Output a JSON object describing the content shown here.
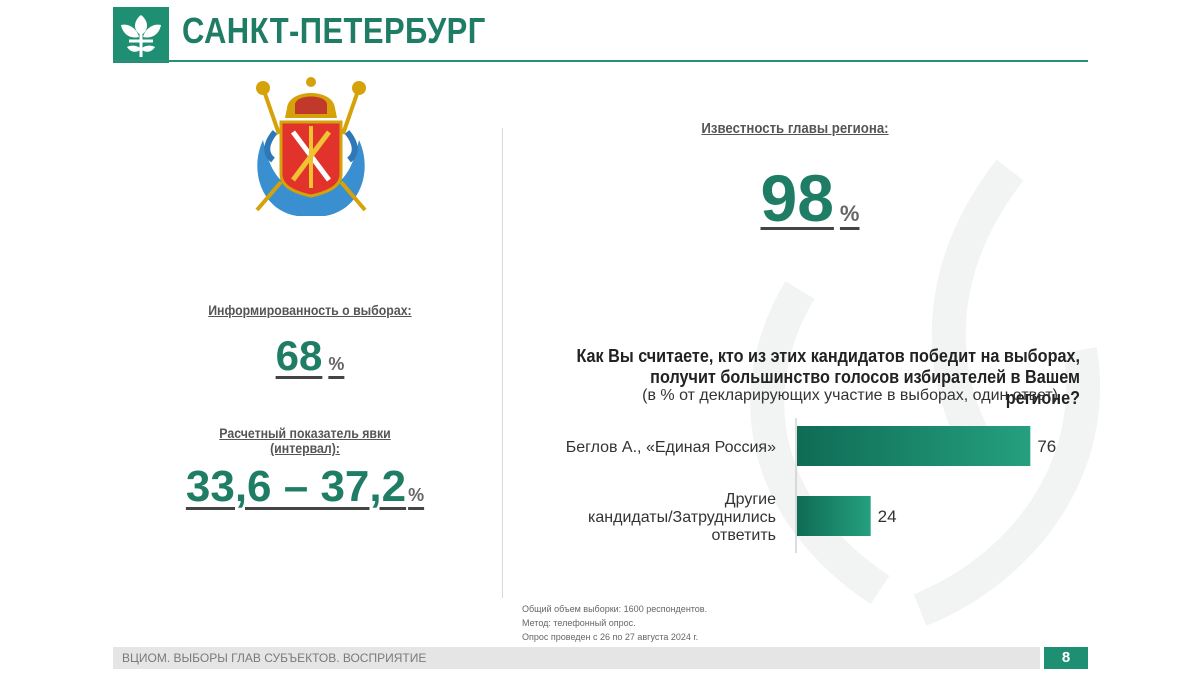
{
  "header": {
    "title": "САНКТ-ПЕТЕРБУРГ"
  },
  "awareness": {
    "label": "Известность главы региона:",
    "value": "98",
    "unit": "%"
  },
  "informed": {
    "label": "Информированность о выборах:",
    "value": "68",
    "unit": "%"
  },
  "turnout": {
    "label": "Расчетный показатель явки (интервал):",
    "value": "33,6 – 37,2",
    "unit": "%"
  },
  "question": {
    "text": "Как Вы считаете, кто из этих кандидатов победит на выборах, получит большинство голосов избирателей в Вашем регионе?",
    "note": "(в % от  декларирующих участие в выборах, один ответ)"
  },
  "chart_data": {
    "type": "bar",
    "orientation": "horizontal",
    "categories": [
      "Беглов А., «Единая Россия»",
      "Другие кандидаты/Затруднились ответить"
    ],
    "values": [
      76,
      24
    ],
    "xlim": [
      0,
      100
    ],
    "bar_color": "#1f8f73"
  },
  "footnotes": [
    "Общий объем выборки: 1600 респондентов.",
    "Метод: телефонный опрос.",
    "Опрос проведен с 26 по 27 августа 2024 г."
  ],
  "footer": {
    "text": "ВЦИОМ. Выборы глав субъектов. Восприятие",
    "page": "8"
  }
}
